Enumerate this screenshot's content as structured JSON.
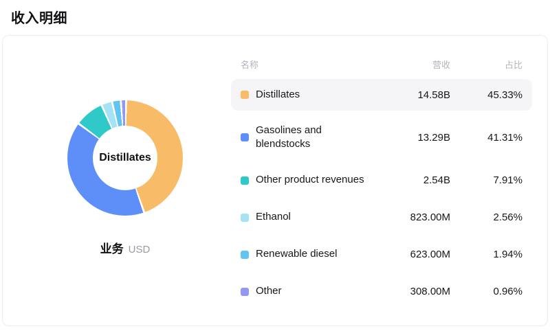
{
  "page_title": "收入明细",
  "chart": {
    "center_label": "Distillates",
    "caption": "业务",
    "caption_unit": "USD"
  },
  "table": {
    "headers": {
      "name": "名称",
      "revenue": "营收",
      "share": "占比"
    }
  },
  "chart_data": {
    "type": "pie",
    "title": "收入明细",
    "subtype": "donut",
    "legend_position": "right-table",
    "categories": [
      "Distillates",
      "Gasolines and blendstocks",
      "Other product revenues",
      "Ethanol",
      "Renewable diesel",
      "Other"
    ],
    "values": [
      45.33,
      41.31,
      7.91,
      2.56,
      1.94,
      0.96
    ],
    "revenues": [
      "14.58B",
      "13.29B",
      "2.54B",
      "823.00M",
      "623.00M",
      "308.00M"
    ],
    "shares": [
      "45.33%",
      "41.31%",
      "7.91%",
      "2.56%",
      "1.94%",
      "0.96%"
    ],
    "colors": [
      "#f8bc69",
      "#5e8ff8",
      "#2fc9c9",
      "#a5e2f6",
      "#62c4f0",
      "#9598f2"
    ],
    "unit": "USD",
    "selected_slice": "Distillates"
  }
}
